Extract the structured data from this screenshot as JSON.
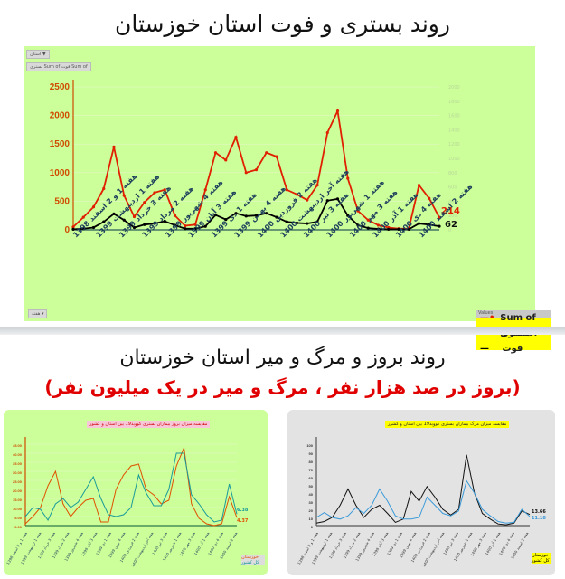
{
  "titles": {
    "top": "روند بستری و فوت استان خوزستان",
    "bottom_main": "روند بروز و مرگ و میر استان خوزستان",
    "bottom_sub": "(بروز در صد هزار نفر ، مرگ و میر در یک میلیون نفر)"
  },
  "top_chart_ui": {
    "filter_chip": "استان ▼",
    "values_chip": "Sum of فوت  Sum of بستری",
    "axis_chip": "هفته ▾",
    "legend_header": "Values",
    "legend": [
      {
        "label": "Sum of بستری",
        "color": "#e02000"
      },
      {
        "label": "Sum of فوت",
        "color": "#000000"
      }
    ],
    "end_labels": {
      "hosp": "214",
      "death": "62"
    }
  },
  "left_chart_ui": {
    "title": "مقایسه میزان بروز بیماران بستری کووید19 بین استان و کشور",
    "legend": [
      {
        "label": "خوزستان",
        "color": "#e05000"
      },
      {
        "label": "کل کشور",
        "color": "#1a9a9a"
      }
    ],
    "end_labels": {
      "country": "6.38",
      "province": "4.37"
    }
  },
  "right_chart_ui": {
    "title": "مقایسه میزان مرگ بیماران بستری کووید19 بین استان و کشور",
    "legend": [
      {
        "label": "خوزستان",
        "color": "#111111"
      },
      {
        "label": "کل کشور",
        "color": "#3a9ad9"
      }
    ],
    "end_labels": {
      "province": "13.66",
      "country": "11.18"
    }
  },
  "chart_data": [
    {
      "type": "line",
      "title": "روند بستری و فوت استان خوزستان",
      "xlabel": "هفته",
      "ylabel": "",
      "ylim": [
        0,
        2500
      ],
      "yticks": [
        0,
        500,
        1000,
        1500,
        2000,
        2500
      ],
      "grid": true,
      "legend_position": "bottom-right",
      "categories": [
        "هفته 1 و 2 اسفند 1398",
        "هفته 1 اردیبهشت 1399",
        "هفته 3 خرداد 1399",
        "هفته 2 مرداد 1399",
        "هفته 4 شهریور 1399",
        "هفته 3 آبان 1399",
        "هفته 1 دی 1399",
        "هفته 4 بهمن 1399",
        "هفته 2 فروردین 1400",
        "هفته آخر اردیبهشت 1400",
        "هفته 3 تیر 1400",
        "هفته 1 شهریور 1400",
        "هفته 3 مهر 1400",
        "هفته 1 آذر 1400",
        "هفته 4 دی 1400",
        "هفته 2 اسفند 1400"
      ],
      "series": [
        {
          "name": "Sum of بستری",
          "values": [
            50,
            220,
            400,
            720,
            1450,
            600,
            230,
            480,
            650,
            700,
            250,
            70,
            90,
            700,
            1350,
            1220,
            1620,
            1000,
            1050,
            1350,
            1280,
            700,
            620,
            520,
            780,
            1700,
            2080,
            900,
            330,
            170,
            80,
            40,
            20,
            20,
            780,
            550,
            214
          ]
        },
        {
          "name": "Sum of فوت",
          "values": [
            10,
            20,
            40,
            140,
            280,
            170,
            40,
            90,
            110,
            150,
            80,
            20,
            20,
            60,
            260,
            180,
            290,
            240,
            250,
            290,
            220,
            140,
            120,
            110,
            140,
            510,
            540,
            250,
            80,
            30,
            15,
            10,
            10,
            10,
            110,
            90,
            62
          ]
        }
      ]
    },
    {
      "type": "line",
      "title": "مقایسه میزان بروز بیماران بستری کووید19 بین استان و کشور",
      "ylim": [
        0,
        45
      ],
      "yticks": [
        0,
        5,
        10,
        15,
        20,
        25,
        30,
        35,
        40,
        45
      ],
      "series": [
        {
          "name": "خوزستان",
          "values": [
            1,
            5,
            10,
            22,
            30,
            12,
            5,
            10,
            14,
            15,
            2,
            2,
            20,
            28,
            33,
            34,
            20,
            17,
            12,
            14,
            33,
            43,
            12,
            4,
            1,
            0,
            1,
            16,
            4.37
          ]
        },
        {
          "name": "کل کشور",
          "values": [
            5,
            10,
            9,
            3,
            12,
            15,
            10,
            13,
            20,
            27,
            15,
            6,
            5,
            6,
            10,
            28,
            18,
            11,
            11,
            20,
            40,
            40,
            17,
            12,
            6,
            2,
            3,
            23,
            6.38
          ]
        }
      ]
    },
    {
      "type": "line",
      "title": "مقایسه میزان مرگ بیماران بستری کووید19 بین استان و کشور",
      "ylim": [
        0,
        100
      ],
      "yticks": [
        0,
        10,
        20,
        30,
        40,
        50,
        60,
        70,
        80,
        90,
        100
      ],
      "series": [
        {
          "name": "خوزستان",
          "values": [
            3,
            5,
            10,
            25,
            45,
            25,
            10,
            20,
            25,
            15,
            4,
            8,
            42,
            30,
            48,
            35,
            20,
            13,
            20,
            87,
            40,
            15,
            8,
            2,
            1,
            3,
            18,
            13.66
          ]
        },
        {
          "name": "کل کشور",
          "values": [
            10,
            16,
            10,
            8,
            12,
            22,
            15,
            25,
            45,
            30,
            12,
            8,
            8,
            10,
            35,
            25,
            15,
            12,
            18,
            55,
            40,
            20,
            12,
            5,
            3,
            4,
            20,
            11.18
          ]
        }
      ]
    }
  ]
}
